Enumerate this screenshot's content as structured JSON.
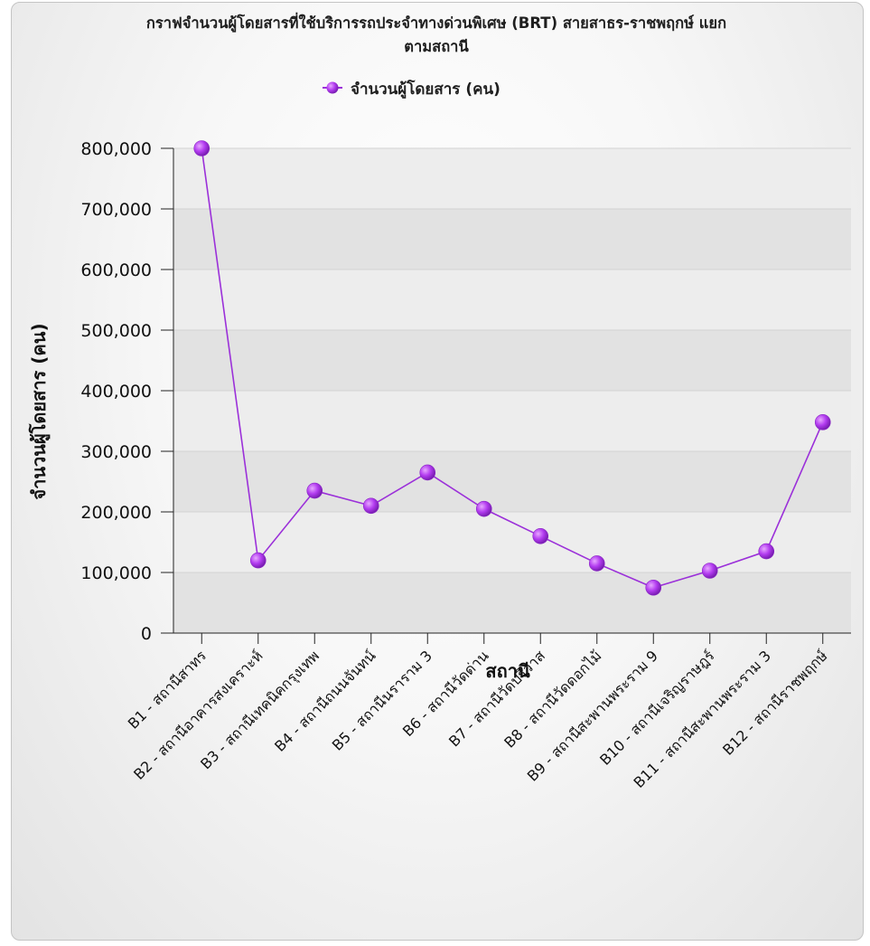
{
  "chart_data": {
    "type": "line",
    "title_lines": [
      "กราฟจำนวนผู้โดยสารที่ใช้บริการรถประจำทางด่วนพิเศษ (BRT) สายสาธร-ราชพฤกษ์ แยก",
      "ตามสถานี"
    ],
    "xlabel": "สถานี",
    "ylabel": "จำนวนผู้โดยสาร (คน)",
    "ylim": [
      0,
      800000
    ],
    "yticks": [
      0,
      100000,
      200000,
      300000,
      400000,
      500000,
      600000,
      700000,
      800000
    ],
    "ytick_labels": [
      "0",
      "100,000",
      "200,000",
      "300,000",
      "400,000",
      "500,000",
      "600,000",
      "700,000",
      "800,000"
    ],
    "grid": true,
    "legend_position": "top-center",
    "series_color": "#9b30d9",
    "categories": [
      "B1 - สถานีสาทร",
      "B2 - สถานีอาคารสงเคราะห์",
      "B3 - สถานีเทคนิคกรุงเทพ",
      "B4 - สถานีถนนจันทน์",
      "B5 - สถานีนราราม 3",
      "B6 - สถานีวัดด่าน",
      "B7 - สถานีวัดปริวาส",
      "B8 - สถานีวัดดอกไม้",
      "B9 - สถานีสะพานพระราม 9",
      "B10 - สถานีเจริญราษฎร์",
      "B11 - สถานีสะพานพระราม 3",
      "B12 - สถานีราชพฤกษ์"
    ],
    "series": [
      {
        "name": "จำนวนผู้โดยสาร (คน)",
        "values": [
          800000,
          120000,
          235000,
          210000,
          265000,
          205000,
          160000,
          115000,
          75000,
          103000,
          135000,
          348000
        ]
      }
    ]
  }
}
